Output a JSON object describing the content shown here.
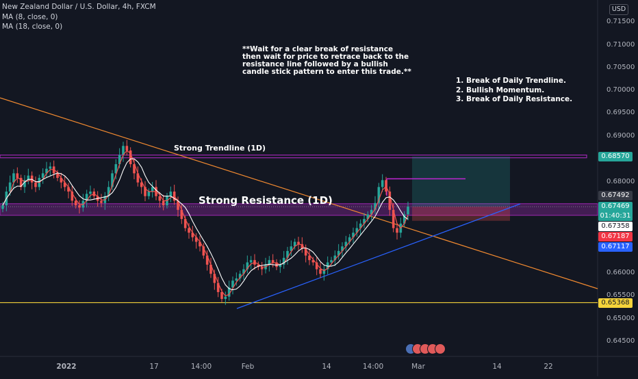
{
  "header": {
    "title": "New Zealand Dollar / U.S. Dollar, 4h, FXCM",
    "indicators": [
      "MA (8, close, 0)",
      "MA (18, close, 0)"
    ],
    "currency": "USD"
  },
  "annotations": {
    "strategy_note": "**Wait for a clear break of resistance\nthen wait for price to retrace back to the\nresistance line followed by a bullish\ncandle stick pattern to enter this trade.**",
    "checklist": "1. Break of Daily Trendline.\n2. Bullish Momentum.\n3. Break of Daily Resistance.",
    "trendline_label": "Strong Trendline (1D)",
    "resistance_label": "Strong Resistance (1D)"
  },
  "price_axis": [
    "0.71500",
    "0.71000",
    "0.70500",
    "0.70000",
    "0.69500",
    "0.69000",
    "0.68000",
    "0.66000",
    "0.65500",
    "0.65000",
    "0.64500"
  ],
  "time_axis": [
    "2022",
    "17",
    "14:00",
    "Feb",
    "14",
    "14:00",
    "Mar",
    "14",
    "22"
  ],
  "price_tags": [
    {
      "value": "0.68570",
      "color": "#26a69a"
    },
    {
      "value": "0.67492",
      "color": "#363a45"
    },
    {
      "value": "0.67469",
      "color": "#26a69a",
      "sub": "01:40:31"
    },
    {
      "value": "0.67358",
      "color": "#ffffff"
    },
    {
      "value": "0.67187",
      "color": "#f23645"
    },
    {
      "value": "0.67117",
      "color": "#2962ff"
    },
    {
      "value": "0.65368",
      "color": "#f5d33a"
    }
  ],
  "colors": {
    "bg": "#131722",
    "up": "#26a69a",
    "down": "#ef5350",
    "trend_orange": "#f28a30",
    "resistance_purple": "#9c27b0",
    "support_yellow": "#f5d33a",
    "uptrend_blue": "#2962ff"
  },
  "chart_data": {
    "type": "candlestick",
    "title": "New Zealand Dollar / U.S. Dollar, 4h, FXCM",
    "ylim": [
      0.642,
      0.718
    ],
    "levels": {
      "resistance_top": 0.6857,
      "resistance_zone": [
        0.6737,
        0.6752
      ],
      "support": 0.65368,
      "target": 0.6808
    },
    "position": {
      "entry": 0.6747,
      "stop": 0.6716,
      "target": 0.6857
    },
    "closes": [
      0.675,
      0.678,
      0.68,
      0.682,
      0.681,
      0.679,
      0.6805,
      0.6815,
      0.68,
      0.679,
      0.681,
      0.682,
      0.683,
      0.6835,
      0.682,
      0.681,
      0.68,
      0.679,
      0.678,
      0.676,
      0.675,
      0.6745,
      0.676,
      0.6775,
      0.678,
      0.677,
      0.676,
      0.6755,
      0.677,
      0.679,
      0.682,
      0.684,
      0.686,
      0.688,
      0.687,
      0.684,
      0.682,
      0.68,
      0.679,
      0.677,
      0.678,
      0.679,
      0.677,
      0.676,
      0.675,
      0.677,
      0.678,
      0.676,
      0.674,
      0.672,
      0.67,
      0.669,
      0.668,
      0.667,
      0.666,
      0.664,
      0.662,
      0.66,
      0.658,
      0.656,
      0.6545,
      0.655,
      0.657,
      0.6585,
      0.659,
      0.66,
      0.661,
      0.6625,
      0.663,
      0.662,
      0.6615,
      0.661,
      0.662,
      0.663,
      0.6625,
      0.6615,
      0.662,
      0.6635,
      0.665,
      0.666,
      0.667,
      0.6665,
      0.6655,
      0.664,
      0.663,
      0.6625,
      0.661,
      0.66,
      0.661,
      0.6625,
      0.663,
      0.664,
      0.665,
      0.666,
      0.667,
      0.668,
      0.669,
      0.67,
      0.671,
      0.672,
      0.673,
      0.674,
      0.6755,
      0.679,
      0.6805,
      0.678,
      0.674,
      0.67,
      0.669,
      0.671,
      0.673,
      0.6747
    ]
  }
}
